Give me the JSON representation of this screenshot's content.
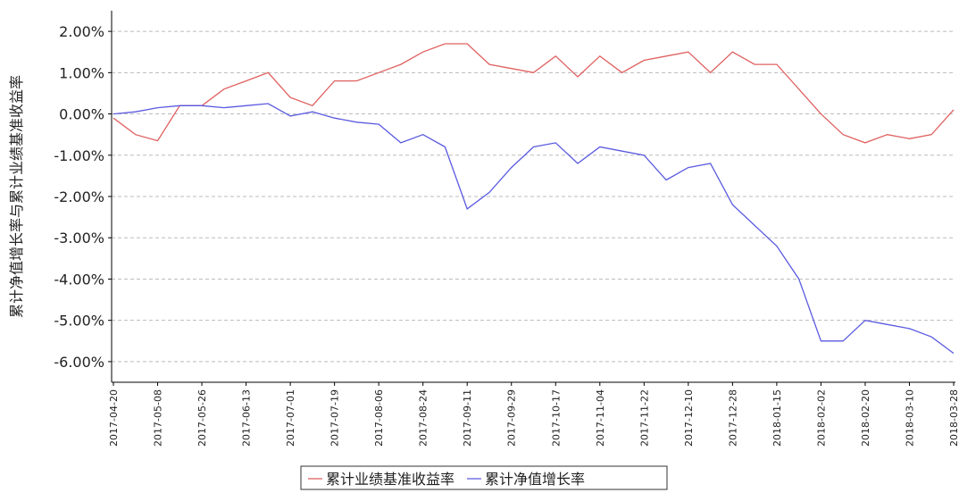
{
  "chart_data": {
    "type": "line",
    "y_label": "累计净值增长率与累计业绩基准收益率",
    "x": [
      "2017-04-20",
      "2017-04-29",
      "2017-05-08",
      "2017-05-17",
      "2017-05-26",
      "2017-06-04",
      "2017-06-13",
      "2017-06-22",
      "2017-07-01",
      "2017-07-10",
      "2017-07-19",
      "2017-07-28",
      "2017-08-06",
      "2017-08-15",
      "2017-08-24",
      "2017-09-02",
      "2017-09-11",
      "2017-09-20",
      "2017-09-29",
      "2017-10-08",
      "2017-10-17",
      "2017-10-26",
      "2017-11-04",
      "2017-11-13",
      "2017-11-22",
      "2017-12-01",
      "2017-12-10",
      "2017-12-19",
      "2017-12-28",
      "2018-01-06",
      "2018-01-15",
      "2018-01-24",
      "2018-02-02",
      "2018-02-11",
      "2018-02-20",
      "2018-03-01",
      "2018-03-10",
      "2018-03-19",
      "2018-03-28"
    ],
    "xlim": [
      "2017-04-20",
      "2018-03-28"
    ],
    "xticks": [
      "2017-04-20",
      "2017-05-08",
      "2017-05-26",
      "2017-06-13",
      "2017-07-01",
      "2017-07-19",
      "2017-08-06",
      "2017-08-24",
      "2017-09-11",
      "2017-09-29",
      "2017-10-17",
      "2017-11-04",
      "2017-11-22",
      "2017-12-10",
      "2017-12-28",
      "2018-01-15",
      "2018-02-02",
      "2018-02-20",
      "2018-03-10",
      "2018-03-28"
    ],
    "ylim": [
      -6.5,
      2.5
    ],
    "yticks": [
      {
        "value": 2,
        "label": "2.00%"
      },
      {
        "value": 1,
        "label": "1.00%"
      },
      {
        "value": 0,
        "label": "0.00%"
      },
      {
        "value": -1,
        "label": "-1.00%"
      },
      {
        "value": -2,
        "label": "-2.00%"
      },
      {
        "value": -3,
        "label": "-3.00%"
      },
      {
        "value": -4,
        "label": "-4.00%"
      },
      {
        "value": -5,
        "label": "-5.00%"
      },
      {
        "value": -6,
        "label": "-6.00%"
      }
    ],
    "grid": true,
    "legend": "bottom",
    "series": [
      {
        "name": "累计业绩基准收益率",
        "color": "#e06060",
        "values": [
          -0.1,
          -0.5,
          -0.65,
          0.2,
          0.2,
          0.6,
          0.8,
          1.0,
          0.4,
          0.2,
          0.8,
          0.8,
          1.0,
          1.2,
          1.5,
          1.7,
          1.7,
          1.2,
          1.1,
          1.0,
          1.4,
          0.9,
          1.4,
          1.0,
          1.3,
          1.4,
          1.5,
          1.0,
          1.5,
          1.2,
          1.2,
          0.6,
          0.0,
          -0.5,
          -0.7,
          -0.5,
          -0.6,
          -0.5,
          0.1
        ]
      },
      {
        "name": "累计净值增长率",
        "color": "#5a5ae0",
        "values": [
          0.0,
          0.05,
          0.15,
          0.2,
          0.2,
          0.15,
          0.2,
          0.25,
          -0.05,
          0.05,
          -0.1,
          -0.2,
          -0.25,
          -0.7,
          -0.5,
          -0.8,
          -2.3,
          -1.9,
          -1.3,
          -0.8,
          -0.7,
          -1.2,
          -0.8,
          -0.9,
          -1.0,
          -1.6,
          -1.3,
          -1.2,
          -2.2,
          -2.7,
          -3.2,
          -4.0,
          -5.5,
          -5.5,
          -5.0,
          -5.1,
          -5.2,
          -5.4,
          -5.8
        ]
      }
    ]
  }
}
